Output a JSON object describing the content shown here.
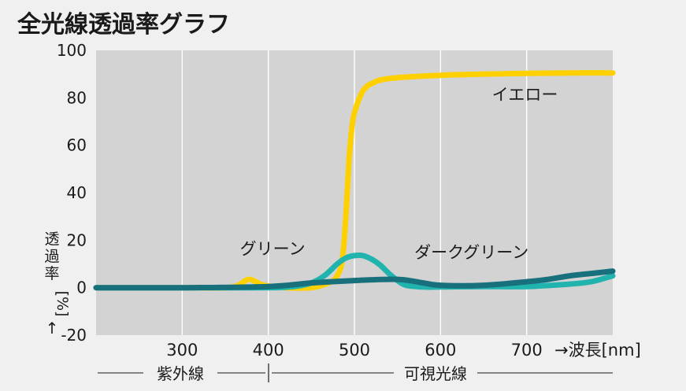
{
  "title": "全光線透過率グラフ",
  "chart_data": {
    "type": "line",
    "title": "全光線透過率グラフ",
    "xlabel": "→波長",
    "xunit": "[nm]",
    "ylabel_chars": [
      "透",
      "過",
      "率"
    ],
    "ylabel_unit": "[%]",
    "ylabel_arrow": "↑",
    "xlim": [
      200,
      800
    ],
    "ylim": [
      -20,
      100
    ],
    "xticks": [
      300,
      400,
      500,
      600,
      700
    ],
    "yticks": [
      100,
      80,
      60,
      40,
      20,
      0,
      -20
    ],
    "grid": true,
    "ranges": [
      {
        "label": "紫外線",
        "from": 200,
        "to": 400
      },
      {
        "label": "可視光線",
        "from": 400,
        "to": 800
      }
    ],
    "series": [
      {
        "name": "イエロー",
        "color": "#ffd000",
        "x": [
          200,
          300,
          350,
          365,
          378,
          395,
          420,
          450,
          470,
          480,
          486,
          490,
          494,
          498,
          502,
          506,
          510,
          515,
          520,
          530,
          550,
          600,
          650,
          700,
          750,
          800
        ],
        "y": [
          0,
          0,
          0,
          1,
          3.5,
          1,
          0,
          0,
          2,
          5,
          12,
          30,
          55,
          70,
          76,
          80,
          83,
          85,
          86,
          87.5,
          88.5,
          89.5,
          90,
          90.3,
          90.5,
          90.5
        ]
      },
      {
        "name": "グリーン",
        "color": "#21b3ad",
        "x": [
          200,
          300,
          400,
          430,
          450,
          465,
          480,
          490,
          500,
          510,
          520,
          530,
          540,
          550,
          560,
          580,
          600,
          650,
          700,
          750,
          775,
          800
        ],
        "y": [
          0,
          0,
          0,
          0.5,
          2,
          5,
          10,
          12.5,
          13.5,
          13.5,
          12,
          9.5,
          6,
          3,
          1,
          0.3,
          0.3,
          0.5,
          0.5,
          1.5,
          2.5,
          5
        ]
      },
      {
        "name": "ダークグリーン",
        "color": "#17707c",
        "x": [
          200,
          300,
          400,
          450,
          500,
          550,
          580,
          600,
          650,
          700,
          725,
          750,
          775,
          800
        ],
        "y": [
          0,
          0,
          0.5,
          2,
          3,
          3.5,
          2,
          1,
          1,
          2.5,
          3.5,
          5,
          6,
          7
        ]
      }
    ],
    "annotations": [
      {
        "text": "イエロー",
        "x": 698,
        "y": 79
      },
      {
        "text": "グリーン",
        "x": 405,
        "y": 14
      },
      {
        "text": "ダークグリーン",
        "x": 636,
        "y": 12.5
      }
    ]
  }
}
